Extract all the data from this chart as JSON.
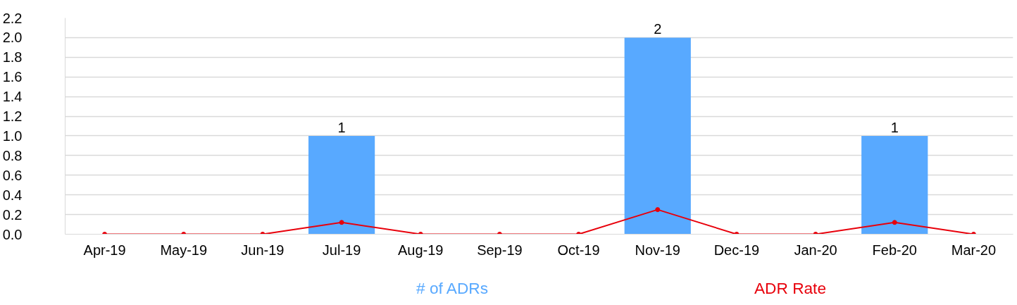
{
  "chart_data": {
    "type": "bar",
    "categories": [
      "Apr-19",
      "May-19",
      "Jun-19",
      "Jul-19",
      "Aug-19",
      "Sep-19",
      "Oct-19",
      "Nov-19",
      "Dec-19",
      "Jan-20",
      "Feb-20",
      "Mar-20"
    ],
    "series": [
      {
        "name": "# of ADRs",
        "color": "#58a9ff",
        "values": [
          0,
          0,
          0,
          1,
          0,
          0,
          0,
          2,
          0,
          0,
          1,
          0
        ],
        "value_labels": [
          null,
          null,
          null,
          "1",
          null,
          null,
          null,
          "2",
          null,
          null,
          "1",
          null
        ]
      },
      {
        "name": "ADR Rate",
        "color": "#e8000b",
        "type": "line",
        "marker": "circle",
        "values": [
          0,
          0,
          0,
          0.12,
          0,
          0,
          0,
          0.25,
          0,
          0,
          0.12,
          0
        ]
      }
    ],
    "ylim": [
      0,
      2.2
    ],
    "yticks": [
      {
        "value": 0,
        "label": "0.0"
      },
      {
        "value": 0.2,
        "label": "0.2"
      },
      {
        "value": 0.4,
        "label": "0.4"
      },
      {
        "value": 0.6,
        "label": "0.6"
      },
      {
        "value": 0.8,
        "label": "0.8"
      },
      {
        "value": 1.0,
        "label": "1.0"
      },
      {
        "value": 1.2,
        "label": "1.2"
      },
      {
        "value": 1.4,
        "label": "1.4"
      },
      {
        "value": 1.6,
        "label": "1.6"
      },
      {
        "value": 1.8,
        "label": "1.8"
      },
      {
        "value": 2.0,
        "label": "2.0"
      },
      {
        "value": 2.2,
        "label": "2.2"
      }
    ],
    "grid": "y",
    "legend": "bottom"
  }
}
